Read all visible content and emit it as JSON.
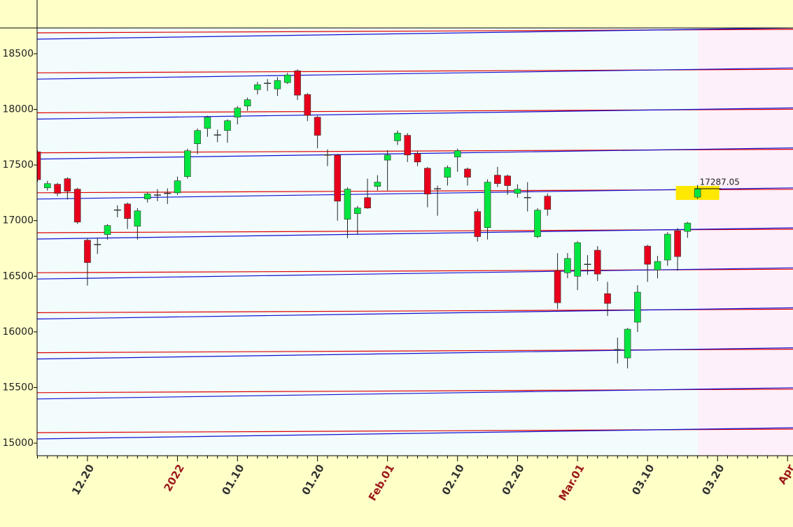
{
  "chart_data": {
    "type": "candlestick",
    "categories": [
      null,
      null,
      null,
      null,
      null,
      "12.20",
      null,
      null,
      null,
      null,
      null,
      null,
      null,
      null,
      "2022",
      null,
      null,
      null,
      null,
      null,
      "01.10",
      null,
      null,
      null,
      null,
      null,
      null,
      null,
      "01.20",
      null,
      null,
      null,
      null,
      null,
      null,
      "Feb.01",
      null,
      null,
      null,
      null,
      null,
      null,
      "02.10",
      null,
      null,
      null,
      null,
      null,
      "02.20",
      null,
      null,
      null,
      null,
      null,
      "Mar.01",
      null,
      null,
      null,
      null,
      null,
      null,
      "03.10",
      null,
      null,
      null,
      null,
      null,
      null,
      "03.20",
      null,
      null,
      null,
      null,
      null,
      null,
      "Apr"
    ],
    "open": [
      17619,
      17295,
      17327,
      17377,
      17283,
      16824,
      16780,
      16875,
      17090,
      17150,
      16950,
      17195,
      17225,
      17240,
      17250,
      17396,
      17691,
      17829,
      17767,
      17810,
      17930,
      18030,
      18178,
      18230,
      18184,
      18241,
      18347,
      18134,
      17930,
      17590,
      17590,
      17012,
      17063,
      17207,
      17308,
      17544,
      17718,
      17767,
      17603,
      17471,
      17283,
      17390,
      17572,
      17464,
      17082,
      16937,
      17409,
      17402,
      17245,
      17210,
      16856,
      17220,
      16549,
      16531,
      16500,
      16610,
      16734,
      16344,
      15845,
      15766,
      16087,
      16771,
      16557,
      16646,
      16909,
      16903,
      17211,
      null,
      null,
      null,
      null,
      null,
      null,
      null,
      null,
      null
    ],
    "high": [
      17632,
      17358,
      17340,
      17390,
      17296,
      16843,
      16843,
      16969,
      17138,
      17163,
      17113,
      17252,
      17283,
      17290,
      17396,
      17647,
      17829,
      17943,
      17818,
      17911,
      18030,
      18106,
      18247,
      18272,
      18291,
      18329,
      18360,
      18147,
      17943,
      17640,
      17600,
      17300,
      17132,
      17377,
      17409,
      17632,
      17811,
      17787,
      17622,
      17483,
      17315,
      17496,
      17647,
      17477,
      17107,
      17371,
      17484,
      17415,
      17327,
      17346,
      17113,
      17245,
      16708,
      16708,
      16815,
      16690,
      16771,
      16450,
      15948,
      16036,
      16420,
      16783,
      16683,
      16897,
      16934,
      16990,
      17322,
      null,
      null,
      null,
      null,
      null,
      null,
      null,
      null,
      null
    ],
    "low": [
      17349,
      17270,
      17220,
      17190,
      16970,
      16416,
      16700,
      16830,
      17030,
      16925,
      16830,
      17163,
      17175,
      17150,
      17233,
      17377,
      17597,
      17754,
      17705,
      17700,
      17865,
      17987,
      18134,
      18165,
      18121,
      18228,
      18084,
      17895,
      17650,
      17490,
      17000,
      16843,
      16875,
      17107,
      17270,
      17270,
      17680,
      17527,
      17490,
      17120,
      17044,
      17315,
      17440,
      17315,
      16812,
      16830,
      17302,
      17233,
      17207,
      17082,
      16843,
      17044,
      16206,
      16482,
      16375,
      16513,
      16457,
      16143,
      15716,
      15672,
      15999,
      16450,
      16482,
      16595,
      16551,
      16846,
      17194,
      null,
      null,
      null,
      null,
      null,
      null,
      null,
      null,
      null
    ],
    "close": [
      17368,
      17333,
      17245,
      17264,
      16987,
      16623,
      16785,
      16956,
      17095,
      17019,
      17088,
      17240,
      17230,
      17245,
      17358,
      17628,
      17810,
      17930,
      17770,
      17898,
      18012,
      18087,
      18222,
      18234,
      18260,
      18310,
      18128,
      17946,
      17767,
      17590,
      17175,
      17283,
      17113,
      17113,
      17346,
      17590,
      17787,
      17590,
      17527,
      17239,
      17286,
      17477,
      17628,
      17390,
      16856,
      17346,
      17333,
      17315,
      17283,
      17207,
      17094,
      17101,
      16262,
      16660,
      16802,
      16607,
      16520,
      16256,
      15840,
      16024,
      16357,
      16608,
      16633,
      16878,
      16677,
      16978,
      17287.05,
      null,
      null,
      null,
      null,
      null,
      null,
      null,
      null,
      null
    ],
    "up_color": "#00e640",
    "down_color": "#e8001c",
    "ylim": [
      14887,
      18732
    ],
    "yticks": [
      15000,
      15500,
      16000,
      16500,
      17000,
      17500,
      18000,
      18500
    ]
  }
}
